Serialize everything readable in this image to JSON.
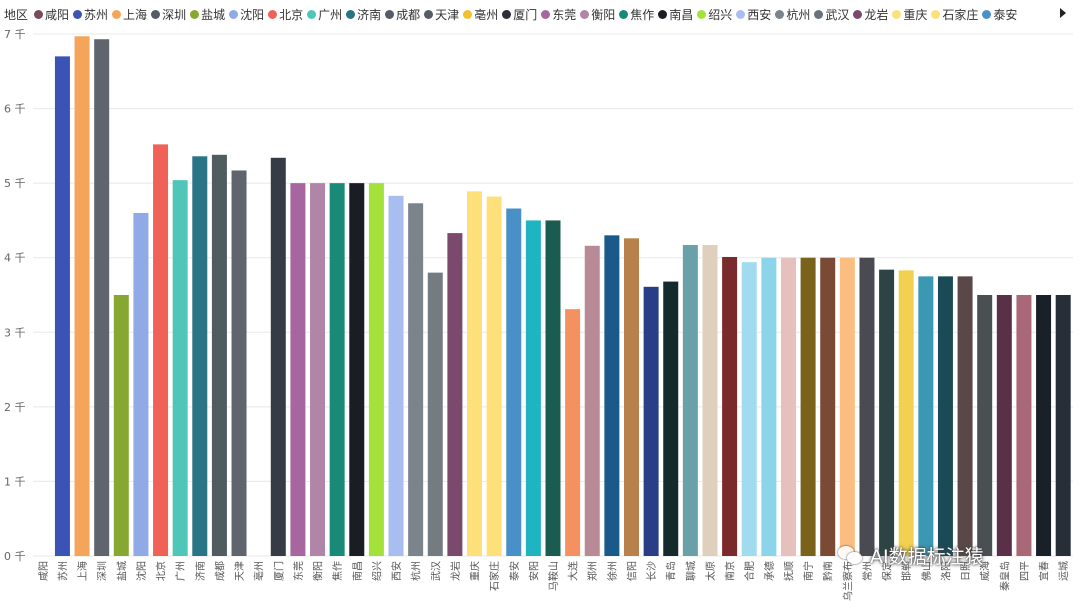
{
  "legend": {
    "title": "地区",
    "items": [
      {
        "name": "咸阳",
        "color": "#7a4a5a"
      },
      {
        "name": "苏州",
        "color": "#3a53b5"
      },
      {
        "name": "上海",
        "color": "#f5a55a"
      },
      {
        "name": "深圳",
        "color": "#565c66"
      },
      {
        "name": "盐城",
        "color": "#86a830"
      },
      {
        "name": "沈阳",
        "color": "#8faae6"
      },
      {
        "name": "北京",
        "color": "#f06158"
      },
      {
        "name": "广州",
        "color": "#4fc6b8"
      },
      {
        "name": "济南",
        "color": "#2a7585"
      },
      {
        "name": "成都",
        "color": "#565c66"
      },
      {
        "name": "天津",
        "color": "#565c66"
      },
      {
        "name": "亳州",
        "color": "#f2c22e"
      },
      {
        "name": "厦门",
        "color": "#2c2f3a"
      },
      {
        "name": "东莞",
        "color": "#a866a0"
      },
      {
        "name": "衡阳",
        "color": "#b085a8"
      },
      {
        "name": "焦作",
        "color": "#1a8a78"
      },
      {
        "name": "南昌",
        "color": "#1a1e24"
      },
      {
        "name": "绍兴",
        "color": "#a3e23a"
      },
      {
        "name": "西安",
        "color": "#a8bdf0"
      },
      {
        "name": "杭州",
        "color": "#7a848a"
      },
      {
        "name": "武汉",
        "color": "#6a737a"
      },
      {
        "name": "龙岩",
        "color": "#7a4a6e"
      },
      {
        "name": "重庆",
        "color": "#fde07a"
      },
      {
        "name": "石家庄",
        "color": "#fde07a"
      },
      {
        "name": "泰安",
        "color": "#4a90c8"
      }
    ]
  },
  "chart_data": {
    "type": "bar",
    "categories": [
      "咸阳",
      "苏州",
      "上海",
      "深圳",
      "盐城",
      "沈阳",
      "北京",
      "广州",
      "济南",
      "成都",
      "天津",
      "亳州",
      "厦门",
      "东莞",
      "衡阳",
      "焦作",
      "南昌",
      "绍兴",
      "西安",
      "杭州",
      "武汉",
      "龙岩",
      "重庆",
      "石家庄",
      "泰安",
      "安阳",
      "马鞍山",
      "大连",
      "郑州",
      "徐州",
      "信阳",
      "长沙",
      "青岛",
      "聊城",
      "太原",
      "南京",
      "合肥",
      "承德",
      "抚顺",
      "南宁",
      "黔南",
      "乌兰察布",
      "常州",
      "保定",
      "邯郸",
      "佛山",
      "洛阳",
      "日照",
      "威海",
      "秦皇岛",
      "四平",
      "宜春",
      "运城"
    ],
    "values": [
      0,
      6700,
      6970,
      6930,
      3500,
      4600,
      5520,
      5040,
      5360,
      5380,
      5170,
      0,
      5340,
      5000,
      5000,
      5000,
      5000,
      5000,
      4830,
      4730,
      3800,
      4330,
      4890,
      4820,
      4660,
      4500,
      4500,
      3310,
      4160,
      4300,
      4260,
      3610,
      3680,
      4170,
      4170,
      4010,
      3940,
      4000,
      4000,
      4000,
      4000,
      4000,
      4000,
      3840,
      3830,
      3750,
      3750,
      3750,
      3500,
      3500,
      3500,
      3500,
      3500
    ],
    "colors": [
      "#7a4a5a",
      "#3a53b5",
      "#f5a55a",
      "#5f646d",
      "#86a830",
      "#8faae6",
      "#f06158",
      "#4fc6b8",
      "#2a7585",
      "#4f5c60",
      "#5f646d",
      "#f2c22e",
      "#373b46",
      "#a866a0",
      "#b085a8",
      "#1a8a78",
      "#1a1e24",
      "#a3e23a",
      "#a8bdf0",
      "#7a848a",
      "#747c82",
      "#7a4a6e",
      "#fde07a",
      "#fde07a",
      "#4a90c8",
      "#1eb5c0",
      "#1a5c50",
      "#f59060",
      "#b88a96",
      "#1a5a8a",
      "#b8804a",
      "#2a3e88",
      "#142a2c",
      "#6aa0a8",
      "#dfd0bc",
      "#7a2a2a",
      "#a0dbee",
      "#8cd4ea",
      "#e6c0bc",
      "#7a621a",
      "#7a4a34",
      "#fcbd80",
      "#4a4a52",
      "#2e4444",
      "#f2d050",
      "#3a98b2",
      "#1a4a56",
      "#5a4848",
      "#4a5052",
      "#5a3048",
      "#a86878",
      "#1a2028",
      "#272e38"
    ],
    "ylim": [
      0,
      7000
    ],
    "y_ticks": [
      0,
      1000,
      2000,
      3000,
      4000,
      5000,
      6000,
      7000
    ],
    "y_tick_labels": [
      "0 千",
      "1 千",
      "2 千",
      "3 千",
      "4 千",
      "5 千",
      "6 千",
      "7 千"
    ],
    "grid": true,
    "legend_position": "top"
  },
  "watermark": "AI数据标注猿"
}
